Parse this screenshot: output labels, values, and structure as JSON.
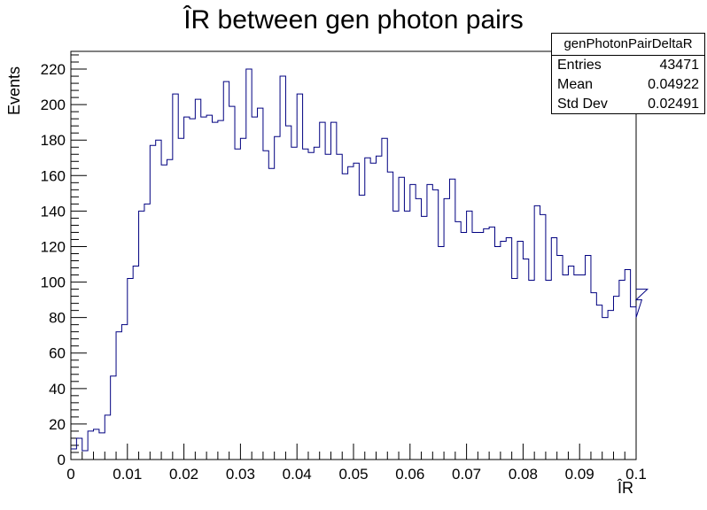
{
  "chart_data": {
    "type": "histogram",
    "title": "ÎR between gen photon pairs",
    "xlabel": "ÎR",
    "ylabel": "Events",
    "xlim": [
      0,
      0.1
    ],
    "ylim": [
      0,
      230
    ],
    "x_ticks": [
      "0",
      "0.01",
      "0.02",
      "0.03",
      "0.04",
      "0.05",
      "0.06",
      "0.07",
      "0.08",
      "0.09",
      "0.1"
    ],
    "y_ticks": [
      "0",
      "20",
      "40",
      "60",
      "80",
      "100",
      "120",
      "140",
      "160",
      "180",
      "200",
      "220"
    ],
    "bin_width": 0.001,
    "counts": [
      6,
      12,
      5,
      16,
      17,
      15,
      25,
      47,
      72,
      76,
      102,
      109,
      140,
      144,
      177,
      180,
      166,
      169,
      206,
      181,
      193,
      192,
      203,
      193,
      194,
      190,
      191,
      213,
      199,
      175,
      181,
      220,
      193,
      198,
      174,
      164,
      182,
      216,
      188,
      176,
      206,
      175,
      173,
      176,
      190,
      172,
      190,
      172,
      161,
      165,
      167,
      149,
      170,
      167,
      171,
      181,
      162,
      140,
      159,
      140,
      155,
      147,
      137,
      155,
      152,
      120,
      147,
      158,
      134,
      128,
      140,
      128,
      128,
      130,
      131,
      120,
      123,
      125,
      102,
      123,
      113,
      101,
      143,
      138,
      101,
      125,
      115,
      104,
      109,
      104,
      104,
      115,
      94,
      87,
      80,
      84,
      92,
      101,
      107,
      86,
      80,
      90,
      96
    ],
    "line_color": "#000080",
    "grid": false
  },
  "stats": {
    "name": "genPhotonPairDeltaR",
    "rows": [
      {
        "label": "Entries",
        "value": "43471"
      },
      {
        "label": "Mean",
        "value": "0.04922"
      },
      {
        "label": "Std Dev",
        "value": "0.02491"
      }
    ]
  }
}
